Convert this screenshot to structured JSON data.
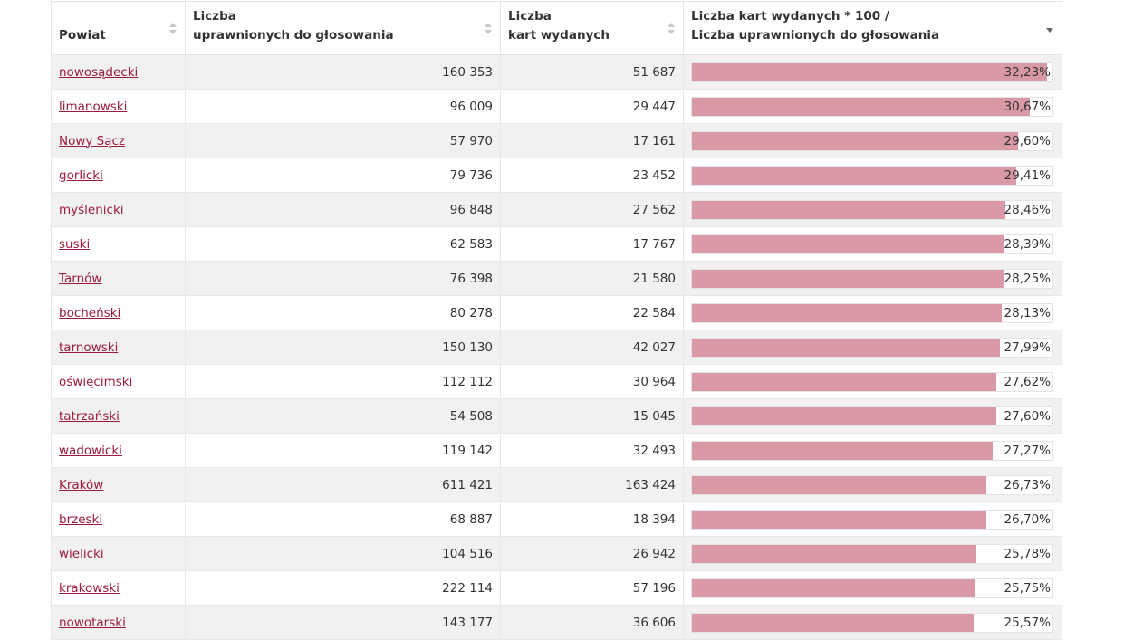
{
  "colors": {
    "bar": "#d99aa6",
    "link": "#9b1b3a"
  },
  "headers": {
    "powiat": "Powiat",
    "uprawnionych_line1": "Liczba",
    "uprawnionych_line2": "uprawnionych do głosowania",
    "kart_line1": "Liczba",
    "kart_line2": "kart wydanych",
    "ratio_line1": "Liczba kart wydanych * 100 /",
    "ratio_line2": "Liczba uprawnionych do głosowania"
  },
  "rows": [
    {
      "powiat": "nowosądecki",
      "uprawnieni": "160 353",
      "karty": "51 687",
      "ratio_label": "32,23%",
      "ratio": 32.23
    },
    {
      "powiat": "limanowski",
      "uprawnieni": "96 009",
      "karty": "29 447",
      "ratio_label": "30,67%",
      "ratio": 30.67
    },
    {
      "powiat": "Nowy Sącz",
      "uprawnieni": "57 970",
      "karty": "17 161",
      "ratio_label": "29,60%",
      "ratio": 29.6
    },
    {
      "powiat": "gorlicki",
      "uprawnieni": "79 736",
      "karty": "23 452",
      "ratio_label": "29,41%",
      "ratio": 29.41
    },
    {
      "powiat": "myślenicki",
      "uprawnieni": "96 848",
      "karty": "27 562",
      "ratio_label": "28,46%",
      "ratio": 28.46
    },
    {
      "powiat": "suski",
      "uprawnieni": "62 583",
      "karty": "17 767",
      "ratio_label": "28,39%",
      "ratio": 28.39
    },
    {
      "powiat": "Tarnów",
      "uprawnieni": "76 398",
      "karty": "21 580",
      "ratio_label": "28,25%",
      "ratio": 28.25
    },
    {
      "powiat": "bocheński",
      "uprawnieni": "80 278",
      "karty": "22 584",
      "ratio_label": "28,13%",
      "ratio": 28.13
    },
    {
      "powiat": "tarnowski",
      "uprawnieni": "150 130",
      "karty": "42 027",
      "ratio_label": "27,99%",
      "ratio": 27.99
    },
    {
      "powiat": "oświęcimski",
      "uprawnieni": "112 112",
      "karty": "30 964",
      "ratio_label": "27,62%",
      "ratio": 27.62
    },
    {
      "powiat": "tatrzański",
      "uprawnieni": "54 508",
      "karty": "15 045",
      "ratio_label": "27,60%",
      "ratio": 27.6
    },
    {
      "powiat": "wadowicki",
      "uprawnieni": "119 142",
      "karty": "32 493",
      "ratio_label": "27,27%",
      "ratio": 27.27
    },
    {
      "powiat": "Kraków",
      "uprawnieni": "611 421",
      "karty": "163 424",
      "ratio_label": "26,73%",
      "ratio": 26.73
    },
    {
      "powiat": "brzeski",
      "uprawnieni": "68 887",
      "karty": "18 394",
      "ratio_label": "26,70%",
      "ratio": 26.7
    },
    {
      "powiat": "wielicki",
      "uprawnieni": "104 516",
      "karty": "26 942",
      "ratio_label": "25,78%",
      "ratio": 25.78
    },
    {
      "powiat": "krakowski",
      "uprawnieni": "222 114",
      "karty": "57 196",
      "ratio_label": "25,75%",
      "ratio": 25.75
    },
    {
      "powiat": "nowotarski",
      "uprawnieni": "143 177",
      "karty": "36 606",
      "ratio_label": "25,57%",
      "ratio": 25.57
    }
  ]
}
